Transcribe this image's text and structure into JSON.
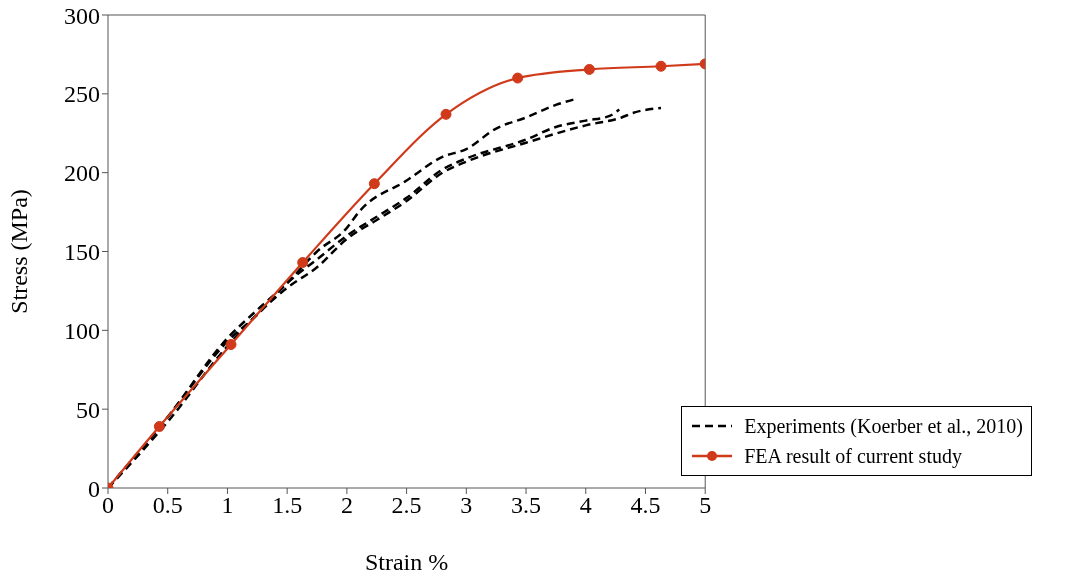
{
  "chart_data": {
    "type": "line",
    "xlabel": "Strain %",
    "ylabel": "Stress (MPa)",
    "xlim": [
      0,
      5
    ],
    "ylim": [
      0,
      300
    ],
    "xticks": [
      0,
      0.5,
      1,
      1.5,
      2,
      2.5,
      3,
      3.5,
      4,
      4.5,
      5
    ],
    "yticks": [
      0,
      50,
      100,
      150,
      200,
      250,
      300
    ],
    "grid": false,
    "legend": "bottom right",
    "series": [
      {
        "name": "Experiments (Koerber et al., 2010)",
        "color": "#000000",
        "line_style": "dashed",
        "marker": "none",
        "x": [
          0,
          0.5,
          1,
          1.25,
          1.5,
          1.75,
          2,
          2.1,
          2.5,
          2.8,
          3,
          3.25,
          3.5,
          3.75,
          3.93
        ],
        "values": [
          0,
          45,
          95,
          113,
          130,
          150,
          165,
          175,
          195,
          210,
          215,
          228,
          235,
          243,
          247
        ]
      },
      {
        "color": "#000000",
        "line_style": "dashed",
        "marker": "none",
        "x": [
          0,
          0.5,
          1,
          1.25,
          1.5,
          1.75,
          2,
          2.25,
          2.5,
          2.8,
          3,
          3.5,
          3.75,
          4,
          4.2,
          4.28
        ],
        "values": [
          0,
          45,
          93,
          110,
          130,
          145,
          160,
          172,
          184,
          202,
          209,
          221,
          229,
          233,
          236,
          240
        ]
      },
      {
        "color": "#000000",
        "line_style": "dashed",
        "marker": "none",
        "x": [
          0,
          0.5,
          1,
          1.5,
          1.75,
          2,
          2.25,
          2.5,
          2.8,
          3,
          3.5,
          4,
          4.3,
          4.4,
          4.63
        ],
        "values": [
          0,
          42,
          90,
          127,
          140,
          158,
          170,
          182,
          200,
          207,
          219,
          230,
          235,
          238,
          241
        ]
      },
      {
        "name": "FEA result of current study",
        "color": "#d03a1b",
        "line_style": "solid",
        "marker": "circle",
        "x": [
          0,
          0.43,
          1.03,
          1.63,
          2.23,
          2.83,
          3.43,
          4.03,
          4.63,
          5
        ],
        "values": [
          0,
          39,
          91,
          143,
          193,
          237,
          260,
          265.5,
          267.5,
          269
        ]
      }
    ]
  }
}
